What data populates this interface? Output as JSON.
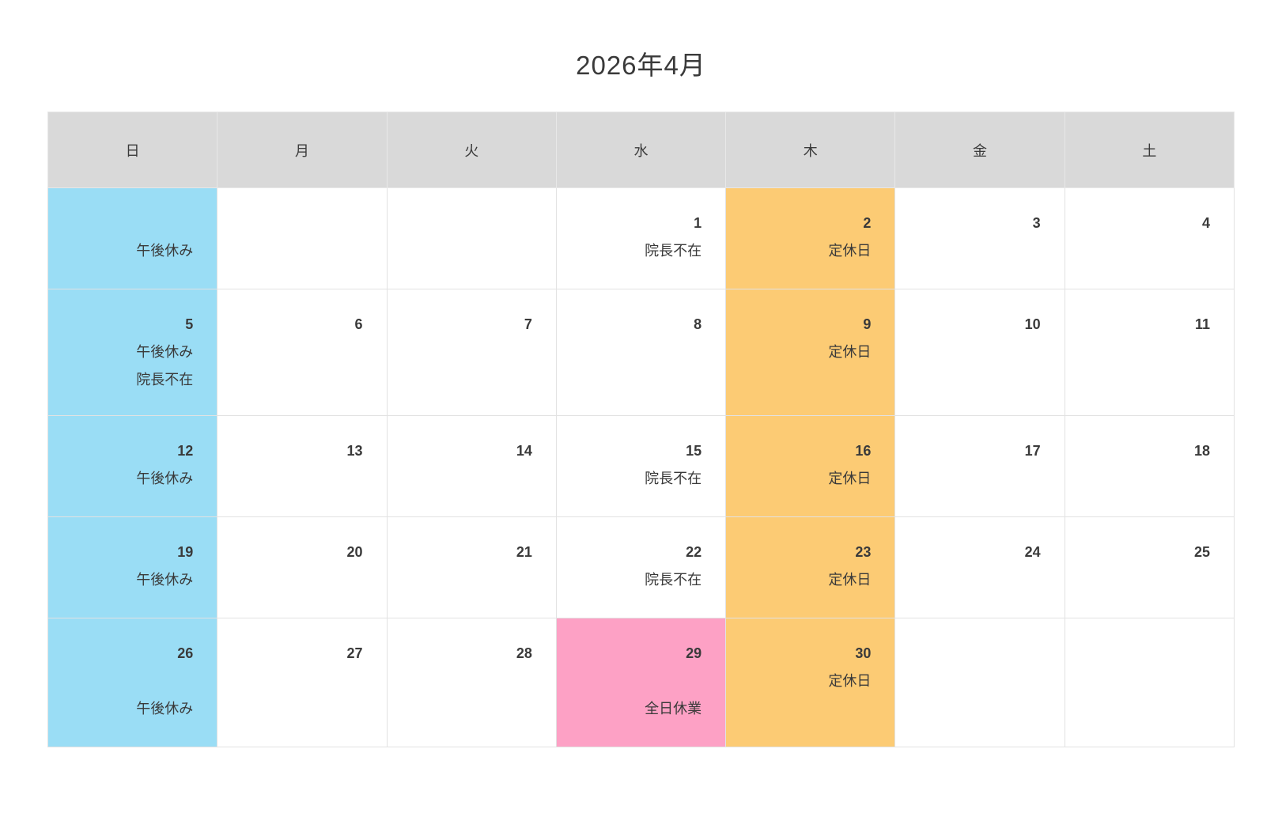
{
  "title": "2026年4月",
  "weekdays": [
    "日",
    "月",
    "火",
    "水",
    "木",
    "金",
    "土"
  ],
  "colors": {
    "header_bg": "#d9d9d9",
    "sunday": "#9addf5",
    "thursday": "#fccb74",
    "closed": "#fda1c5",
    "text": "#3a3a3a"
  },
  "event_labels": {
    "afternoon_off": "午後休み",
    "director_absent": "院長不在",
    "regular_holiday": "定休日",
    "all_day_closed": "全日休業"
  },
  "weeks": [
    {
      "days": [
        {
          "date": "",
          "events": [
            "午後休み"
          ],
          "variant": "sunday"
        },
        {
          "date": "",
          "events": [],
          "variant": ""
        },
        {
          "date": "",
          "events": [],
          "variant": ""
        },
        {
          "date": "1",
          "events": [
            "院長不在"
          ],
          "variant": ""
        },
        {
          "date": "2",
          "events": [
            "定休日"
          ],
          "variant": "thursday"
        },
        {
          "date": "3",
          "events": [],
          "variant": ""
        },
        {
          "date": "4",
          "events": [],
          "variant": ""
        }
      ]
    },
    {
      "days": [
        {
          "date": "5",
          "events": [
            "午後休み",
            "院長不在"
          ],
          "variant": "sunday"
        },
        {
          "date": "6",
          "events": [],
          "variant": ""
        },
        {
          "date": "7",
          "events": [],
          "variant": ""
        },
        {
          "date": "8",
          "events": [],
          "variant": ""
        },
        {
          "date": "9",
          "events": [
            "定休日"
          ],
          "variant": "thursday"
        },
        {
          "date": "10",
          "events": [],
          "variant": ""
        },
        {
          "date": "11",
          "events": [],
          "variant": ""
        }
      ]
    },
    {
      "days": [
        {
          "date": "12",
          "events": [
            "午後休み"
          ],
          "variant": "sunday"
        },
        {
          "date": "13",
          "events": [],
          "variant": ""
        },
        {
          "date": "14",
          "events": [],
          "variant": ""
        },
        {
          "date": "15",
          "events": [
            "院長不在"
          ],
          "variant": ""
        },
        {
          "date": "16",
          "events": [
            "定休日"
          ],
          "variant": "thursday"
        },
        {
          "date": "17",
          "events": [],
          "variant": ""
        },
        {
          "date": "18",
          "events": [],
          "variant": ""
        }
      ]
    },
    {
      "days": [
        {
          "date": "19",
          "events": [
            "午後休み"
          ],
          "variant": "sunday"
        },
        {
          "date": "20",
          "events": [],
          "variant": ""
        },
        {
          "date": "21",
          "events": [],
          "variant": ""
        },
        {
          "date": "22",
          "events": [
            "院長不在"
          ],
          "variant": ""
        },
        {
          "date": "23",
          "events": [
            "定休日"
          ],
          "variant": "thursday"
        },
        {
          "date": "24",
          "events": [],
          "variant": ""
        },
        {
          "date": "25",
          "events": [],
          "variant": ""
        }
      ]
    },
    {
      "days": [
        {
          "date": "26",
          "events": [
            "",
            "午後休み"
          ],
          "variant": "sunday"
        },
        {
          "date": "27",
          "events": [],
          "variant": ""
        },
        {
          "date": "28",
          "events": [],
          "variant": ""
        },
        {
          "date": "29",
          "events": [
            "",
            "全日休業"
          ],
          "variant": "closed"
        },
        {
          "date": "30",
          "events": [
            "定休日"
          ],
          "variant": "thursday"
        },
        {
          "date": "",
          "events": [],
          "variant": ""
        },
        {
          "date": "",
          "events": [],
          "variant": ""
        }
      ]
    }
  ]
}
